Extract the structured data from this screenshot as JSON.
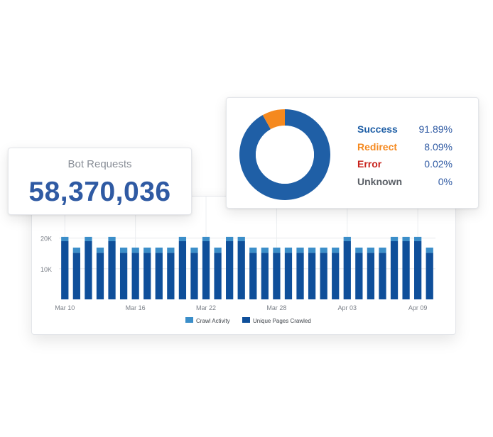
{
  "bot_requests": {
    "title": "Bot Requests",
    "value": "58,370,036",
    "value_color": "#2f5aa3"
  },
  "status": {
    "items": [
      {
        "label": "Success",
        "value": "91.89%",
        "pct": 91.89,
        "color": "#1f5fa6"
      },
      {
        "label": "Redirect",
        "value": "8.09%",
        "pct": 8.09,
        "color": "#f5891f"
      },
      {
        "label": "Error",
        "value": "0.02%",
        "pct": 0.02,
        "color": "#c8231d"
      },
      {
        "label": "Unknown",
        "value": "0%",
        "pct": 0,
        "color": "#5a5f66"
      }
    ],
    "value_color": "#2f5aa3"
  },
  "chart_data": {
    "type": "bar",
    "stacked": true,
    "x_tick_labels": [
      "Mar 10",
      "Mar 16",
      "Mar 22",
      "Mar 28",
      "Apr 03",
      "Apr 09"
    ],
    "y_tick_labels": [
      "10K",
      "20K"
    ],
    "ylim": [
      0,
      22000
    ],
    "grid": "horizontal",
    "legend_position": "bottom",
    "series": [
      {
        "name": "Unique Pages Crawled",
        "color": "#0f4f9a",
        "values": [
          19000,
          15200,
          19000,
          15200,
          19000,
          15200,
          15200,
          15200,
          15200,
          15200,
          19000,
          15200,
          19000,
          15200,
          19000,
          19000,
          15200,
          15200,
          15200,
          15200,
          15200,
          15200,
          15200,
          15200,
          19000,
          15200,
          15200,
          15200,
          19000,
          19000,
          19000,
          15200
        ]
      },
      {
        "name": "Crawl Activity",
        "color": "#3b8ec9",
        "values": [
          1400,
          1700,
          1400,
          1700,
          1400,
          1700,
          1700,
          1700,
          1700,
          1700,
          1400,
          1700,
          1400,
          1700,
          1400,
          1400,
          1700,
          1700,
          1700,
          1700,
          1700,
          1700,
          1700,
          1700,
          1400,
          1700,
          1700,
          1700,
          1400,
          1400,
          1400,
          1700
        ]
      }
    ],
    "legend": [
      {
        "label": "Crawl Activity",
        "color": "#3b8ec9"
      },
      {
        "label": "Unique Pages Crawled",
        "color": "#0f4f9a"
      }
    ]
  }
}
